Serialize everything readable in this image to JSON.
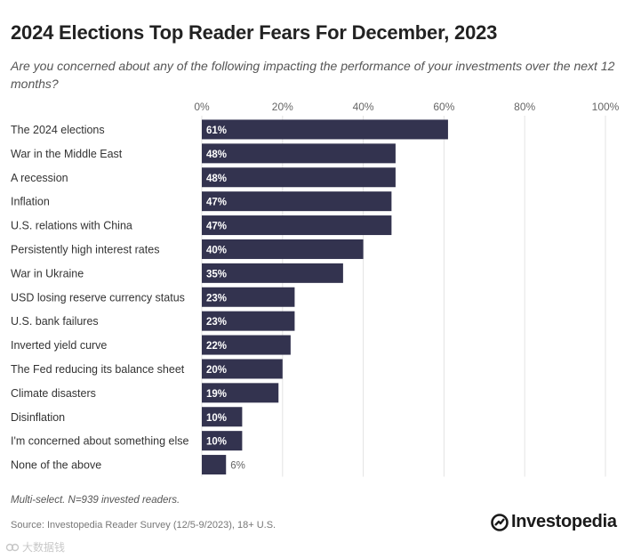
{
  "title": "2024 Elections Top Reader Fears For December, 2023",
  "subtitle": "Are you concerned about any of the following impacting the performance of your investments over the next 12 months?",
  "note": "Multi-select. N=939 invested readers.",
  "source": "Source: Investopedia Reader Survey (12/5-9/2023), 18+ U.S.",
  "brand": "Investopedia",
  "watermark": "大数据钱",
  "colors": {
    "bar": "#33334f",
    "grid": "#e3e3e3",
    "value_in": "#ffffff",
    "value_out": "#666666"
  },
  "chart_data": {
    "type": "bar",
    "orientation": "horizontal",
    "categories": [
      "The 2024 elections",
      "War in the Middle East",
      "A recession",
      "Inflation",
      "U.S. relations with China",
      "Persistently high interest rates",
      "War in Ukraine",
      "USD losing reserve currency status",
      "U.S. bank failures",
      "Inverted yield curve",
      "The Fed reducing its balance sheet",
      "Climate disasters",
      "Disinflation",
      "I'm concerned about something else",
      "None of the above"
    ],
    "values": [
      61,
      48,
      48,
      47,
      47,
      40,
      35,
      23,
      23,
      22,
      20,
      19,
      10,
      10,
      6
    ],
    "value_labels": [
      "61%",
      "48%",
      "48%",
      "47%",
      "47%",
      "40%",
      "35%",
      "23%",
      "23%",
      "22%",
      "20%",
      "19%",
      "10%",
      "10%",
      "6%"
    ],
    "xticks": [
      0,
      20,
      40,
      60,
      80,
      100
    ],
    "xtick_labels": [
      "0%",
      "20%",
      "40%",
      "60%",
      "80%",
      "100%"
    ],
    "xlim": [
      0,
      100
    ],
    "xlabel": "",
    "ylabel": "",
    "grid": true
  }
}
